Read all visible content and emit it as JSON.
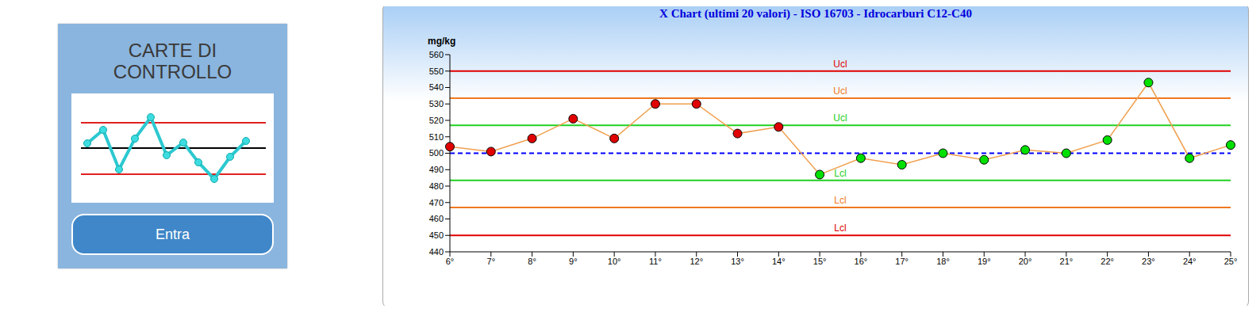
{
  "card": {
    "title_lines": [
      "CARTE DI",
      "CONTROLLO"
    ],
    "button": "Entra"
  },
  "chart_data": {
    "type": "line",
    "title": "X Chart (ultimi 20 valori) - ISO 16703 - Idrocarburi C12-C40",
    "y_label": "mg/kg",
    "categories": [
      "6°",
      "7°",
      "8°",
      "9°",
      "10°",
      "11°",
      "12°",
      "13°",
      "14°",
      "15°",
      "16°",
      "17°",
      "18°",
      "19°",
      "20°",
      "21°",
      "22°",
      "23°",
      "24°",
      "25°"
    ],
    "values": [
      504,
      501,
      509,
      521,
      509,
      530,
      530,
      512,
      516,
      487,
      497,
      493,
      500,
      496,
      502,
      500,
      508,
      543,
      497,
      505
    ],
    "color": "#f0a050",
    "marker": "circle",
    "colors": [
      "#e00000",
      "#e00000",
      "#e00000",
      "#e00000",
      "#e00000",
      "#e00000",
      "#e00000",
      "#e00000",
      "#e00000",
      "#00e000",
      "#00e000",
      "#00e000",
      "#00e000",
      "#00e000",
      "#00e000",
      "#00e000",
      "#00e000",
      "#00e000",
      "#00e000",
      "#00e000"
    ],
    "ylim": [
      440,
      560
    ],
    "yticks": [
      440,
      450,
      460,
      470,
      480,
      490,
      500,
      510,
      520,
      530,
      540,
      550,
      560
    ],
    "grid": false,
    "reference_lines": [
      {
        "value": 550,
        "label": "Ucl",
        "color": "#e00000",
        "line_style": "solid"
      },
      {
        "value": 533.5,
        "label": "Ucl",
        "color": "#f07820",
        "line_style": "solid"
      },
      {
        "value": 517,
        "label": "Ucl",
        "color": "#20d020",
        "line_style": "solid"
      },
      {
        "value": 500,
        "color": "#0000ff",
        "line_style": "dashed"
      },
      {
        "value": 483.5,
        "label": "Lcl",
        "color": "#20d020",
        "line_style": "solid"
      },
      {
        "value": 467,
        "label": "Lcl",
        "color": "#f07820",
        "line_style": "solid"
      },
      {
        "value": 450,
        "label": "Lcl",
        "color": "#e00000",
        "line_style": "solid"
      }
    ]
  }
}
